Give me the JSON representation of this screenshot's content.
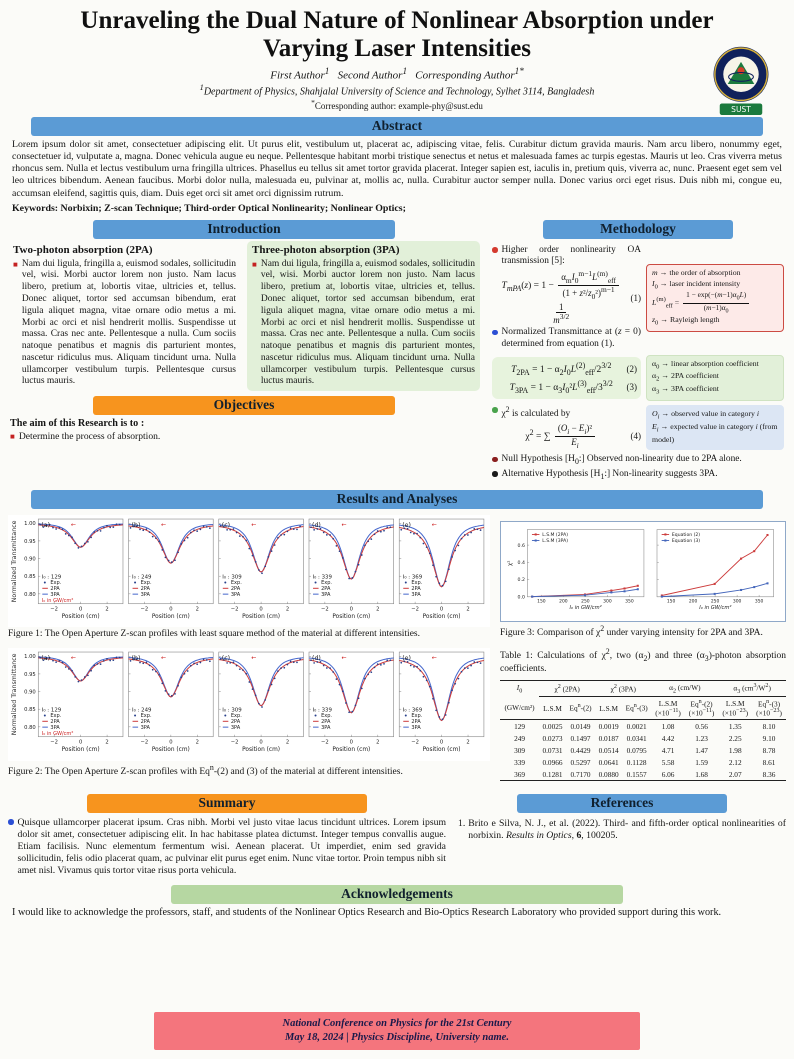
{
  "page": {
    "title": "Unraveling the Dual Nature of Nonlinear Absorption under Varying Laser Intensities",
    "authors_html": "First Author<sup>1</sup> &nbsp;&nbsp;Second Author<sup>1</sup> &nbsp;&nbsp;Corresponding Author<sup>1*</sup>",
    "affiliation_html": "<sup>1</sup>Department of Physics, Shahjalal University of Science and Technology, Sylhet 3114, Bangladesh",
    "corresponding_html": "<sup>*</sup>Corresponding author: example-phy@sust.edu",
    "logo_label": "SUST"
  },
  "colors": {
    "section_header_blue": "#5b9bd5",
    "section_header_orange": "#f7941e",
    "acknowledgement_green": "#b6d7a2",
    "footer_pink": "#f4757d",
    "green_panel": "#e2f0d9"
  },
  "abstract": {
    "heading": "Abstract",
    "text": "Lorem ipsum dolor sit amet, consectetuer adipiscing elit. Ut purus elit, vestibulum ut, placerat ac, adipiscing vitae, felis. Curabitur dictum gravida mauris. Nam arcu libero, nonummy eget, consectetuer id, vulputate a, magna. Donec vehicula augue eu neque. Pellentesque habitant morbi tristique senectus et netus et malesuada fames ac turpis egestas. Mauris ut leo. Cras viverra metus rhoncus sem. Nulla et lectus vestibulum urna fringilla ultrices. Phasellus eu tellus sit amet tortor gravida placerat. Integer sapien est, iaculis in, pretium quis, viverra ac, nunc. Praesent eget sem vel leo ultrices bibendum. Aenean faucibus. Morbi dolor nulla, malesuada eu, pulvinar at, mollis ac, nulla. Curabitur auctor semper nulla. Donec varius orci eget risus. Duis nibh mi, congue eu, accumsan eleifend, sagittis quis, diam. Duis eget orci sit amet orci dignissim rutrum.",
    "keywords": "Keywords: Norbixin; Z-scan Technique; Third-order Optical Nonlinearity; Nonlinear Optics;"
  },
  "introduction": {
    "heading": "Introduction",
    "col_2pa": {
      "title": "Two-photon absorption (2PA)",
      "text": "Nam dui ligula, fringilla a, euismod sodales, sollicitudin vel, wisi. Morbi auctor lorem non justo. Nam lacus libero, pretium at, lobortis vitae, ultricies et, tellus. Donec aliquet, tortor sed accumsan bibendum, erat ligula aliquet magna, vitae ornare odio metus a mi. Morbi ac orci et nisl hendrerit mollis. Suspendisse ut massa. Cras nec ante. Pellentesque a nulla. Cum sociis natoque penatibus et magnis dis parturient montes, nascetur ridiculus mus. Aliquam tincidunt urna. Nulla ullamcorper vestibulum turpis. Pellentesque cursus luctus mauris."
    },
    "col_3pa": {
      "title": "Three-photon absorption (3PA)",
      "text": "Nam dui ligula, fringilla a, euismod sodales, sollicitudin vel, wisi. Morbi auctor lorem non justo. Nam lacus libero, pretium at, lobortis vitae, ultricies et, tellus. Donec aliquet, tortor sed accumsan bibendum, erat ligula aliquet magna, vitae ornare odio metus a mi. Morbi ac orci et nisl hendrerit mollis. Suspendisse ut massa. Cras nec ante. Pellentesque a nulla. Cum sociis natoque penatibus et magnis dis parturient montes, nascetur ridiculus mus. Aliquam tincidunt urna. Nulla ullamcorper vestibulum turpis. Pellentesque cursus luctus mauris."
    }
  },
  "objectives": {
    "heading": "Objectives",
    "lead": "The aim of this Research is to :",
    "items": [
      "Determine the process of absorption."
    ]
  },
  "methodology": {
    "heading": "Methodology",
    "bullets": [
      {
        "html": "Higher order nonlinearity OA transmission [5]:"
      },
      {
        "html": "Normalized Transmittance at (<i>z</i> = 0) determined from equation (1)."
      },
      {
        "html": "χ<sup>2</sup> is calculated by"
      },
      {
        "html": "Null Hypothesis [H<sub>0</sub>:] Observed non-linearity due to 2PA alone."
      },
      {
        "html": "Alternative Hypothesis [H<sub>1</sub>:] Non-linearity suggests 3PA."
      }
    ],
    "equations": [
      {
        "num": "(1)",
        "html": "<i>T<sub>mPA</sub></i>(<i>z</i>) = 1 − <span class=\"frac\"><span class=\"num\">α<sub>m</sub><i>I</i><sub>0</sub><sup>m−1</sup><i>L</i><sup>(m)</sup><sub>eff</sub></span><span class=\"den\">(1 + <i>z</i>²/<i>z</i><sub>0</sub>²)<sup>m−1</sup></span></span><span class=\"frac\"><span class=\"num\">1</span><span class=\"den\"><i>m</i><sup>3/2</sup></span></span>"
      },
      {
        "num": "(2)",
        "html": "<i>T</i><sub>2PA</sub> = 1 − α<sub>2</sub><i>I</i><sub>0</sub><i>L</i><sup>(2)</sup><sub>eff</sub>/2<sup>3/2</sup>"
      },
      {
        "num": "(3)",
        "html": "<i>T</i><sub>3PA</sub> = 1 − α<sub>3</sub><i>I</i><sub>0</sub>²<i>L</i><sup>(3)</sup><sub>eff</sub>/3<sup>3/2</sup>"
      },
      {
        "num": "(4)",
        "html": "χ<sup>2</sup> = ∑ <span class=\"frac\"><span class=\"num\">(<i>O<sub>i</sub></i> − <i>E<sub>i</sub></i>)²</span><span class=\"den\"><i>E<sub>i</sub></i></span></span>"
      }
    ],
    "boxes": [
      {
        "style": "pink",
        "lines": [
          "<i>m</i> → the order of absorption",
          "<i>I</i><sub>0</sub> → laser incident intensity",
          "<i>L</i><sup>(m)</sup><sub>eff</sub> = <span class=\"frac\"><span class=\"num\">1 − exp(−(<i>m</i>−1)α<sub>0</sub><i>L</i>)</span><span class=\"den\">(<i>m</i>−1)α<sub>0</sub></span></span>",
          "<i>z</i><sub>0</sub> → Rayleigh length"
        ]
      },
      {
        "style": "green",
        "lines": [
          "α<sub>0</sub> → linear absorption coefficient",
          "α<sub>2</sub> → 2PA coefficient",
          "α<sub>3</sub> → 3PA coefficient"
        ]
      },
      {
        "style": "blue",
        "lines": [
          "<i>O<sub>i</sub></i> → observed value in category <i>i</i>",
          "<i>E<sub>i</sub></i> → expected value in category <i>i</i> (from model)"
        ]
      }
    ]
  },
  "results": {
    "heading": "Results and Analyses"
  },
  "chart_data": [
    {
      "name": "figure1",
      "type": "line",
      "ylabel": "Normalized Transmittance",
      "xlabel": "Position (cm)",
      "ylim": [
        0.78,
        1.01
      ],
      "yticks": [
        1.0,
        0.95,
        0.9,
        0.85,
        0.8
      ],
      "xticks": [
        -2,
        0,
        2
      ],
      "legend": [
        "Exp.",
        "2PA",
        "3PA"
      ],
      "i0_label": "I₀",
      "annotation": "I₀ in GW/cm²",
      "caption_html": "Figure 1: The Open Aperture Z-scan profiles with least square method of the material at different intensities.",
      "subplots": [
        {
          "tag": "(a)",
          "intensity": 129,
          "min_transmittance": 0.932
        },
        {
          "tag": "(b)",
          "intensity": 249,
          "min_transmittance": 0.887
        },
        {
          "tag": "(c)",
          "intensity": 309,
          "min_transmittance": 0.862
        },
        {
          "tag": "(d)",
          "intensity": 339,
          "min_transmittance": 0.842
        },
        {
          "tag": "(e)",
          "intensity": 369,
          "min_transmittance": 0.82
        }
      ]
    },
    {
      "name": "figure2",
      "type": "line",
      "ylabel": "Normalized Transmittance",
      "xlabel": "Position (cm)",
      "ylim": [
        0.78,
        1.01
      ],
      "yticks": [
        1.0,
        0.95,
        0.9,
        0.85,
        0.8
      ],
      "xticks": [
        -2,
        0,
        2
      ],
      "legend": [
        "Exp.",
        "2PA",
        "3PA"
      ],
      "i0_label": "I₀",
      "annotation": "I₀ in GW/cm²",
      "caption_html": "Figure 2: The Open Aperture Z-scan profiles with Eq<sup>n</sup>-(2) and (3) of the material at different intensities.",
      "subplots": [
        {
          "tag": "(a)",
          "intensity": 129,
          "min_transmittance": 0.93
        },
        {
          "tag": "(b)",
          "intensity": 249,
          "min_transmittance": 0.885
        },
        {
          "tag": "(c)",
          "intensity": 309,
          "min_transmittance": 0.86
        },
        {
          "tag": "(d)",
          "intensity": 339,
          "min_transmittance": 0.84
        },
        {
          "tag": "(e)",
          "intensity": 369,
          "min_transmittance": 0.818
        }
      ]
    },
    {
      "name": "figure3",
      "type": "line",
      "ylabel": "χ²",
      "xlabel": "I₀ in GW/cm²",
      "x": [
        129,
        249,
        309,
        339,
        369
      ],
      "xticks": [
        150,
        200,
        250,
        300,
        350
      ],
      "yticks": [
        0.0,
        0.2,
        0.4,
        0.6
      ],
      "left": {
        "legend": [
          "L.S.M (2PA)",
          "L.S.M (3PA)"
        ],
        "series": [
          [
            0.0025,
            0.0273,
            0.0731,
            0.0966,
            0.1281
          ],
          [
            0.0019,
            0.0187,
            0.0514,
            0.0641,
            0.088
          ]
        ]
      },
      "right": {
        "legend": [
          "Equation (2)",
          "Equation (3)"
        ],
        "series": [
          [
            0.0149,
            0.1497,
            0.4429,
            0.5297,
            0.717
          ],
          [
            0.0021,
            0.0341,
            0.0795,
            0.1128,
            0.1557
          ]
        ]
      },
      "caption_html": "Figure 3: Comparison of χ<sup>2</sup> under varying intensity for 2PA and 3PA."
    }
  ],
  "table": {
    "caption_html": "Table 1: Calculations of χ<sup>2</sup>, two (α<sub>2</sub>) and three (α<sub>3</sub>)-photon absorption coefficients.",
    "first_header_html": "<i>I</i><sub>0</sub>",
    "groups": [
      "χ<sup>2</sup> (2PA)",
      "χ<sup>2</sup> (3PA)",
      "α<sub>2</sub> (cm/W)",
      "α<sub>3</sub> (cm<sup>3</sup>/W<sup>2</sup>)"
    ],
    "sub_headers": [
      "(GW/cm²)",
      "L.S.M",
      "Eq<sup>n</sup>-(2)",
      "L.S.M",
      "Eq<sup>n</sup>-(3)",
      "L.S.M<br>(×10<sup>−11</sup>)",
      "Eq<sup>n</sup>-(2)<br>(×10<sup>−11</sup>)",
      "L.S.M<br>(×10<sup>−23</sup>)",
      "Eq<sup>n</sup>-(3)<br>(×10<sup>−23</sup>)"
    ],
    "rows": [
      [
        "129",
        "0.0025",
        "0.0149",
        "0.0019",
        "0.0021",
        "1.08",
        "0.56",
        "1.35",
        "8.10"
      ],
      [
        "249",
        "0.0273",
        "0.1497",
        "0.0187",
        "0.0341",
        "4.42",
        "1.23",
        "2.25",
        "9.10"
      ],
      [
        "309",
        "0.0731",
        "0.4429",
        "0.0514",
        "0.0795",
        "4.71",
        "1.47",
        "1.98",
        "8.78"
      ],
      [
        "339",
        "0.0966",
        "0.5297",
        "0.0641",
        "0.1128",
        "5.58",
        "1.59",
        "2.12",
        "8.61"
      ],
      [
        "369",
        "0.1281",
        "0.7170",
        "0.0880",
        "0.1557",
        "6.06",
        "1.68",
        "2.07",
        "8.36"
      ]
    ]
  },
  "summary": {
    "heading": "Summary",
    "text": "Quisque ullamcorper placerat ipsum. Cras nibh. Morbi vel justo vitae lacus tincidunt ultrices. Lorem ipsum dolor sit amet, consectetuer adipiscing elit. In hac habitasse platea dictumst. Integer tempus convallis augue. Etiam facilisis. Nunc elementum fermentum wisi. Aenean placerat. Ut imperdiet, enim sed gravida sollicitudin, felis odio placerat quam, ac pulvinar elit purus eget enim. Nunc vitae tortor. Proin tempus nibh sit amet nisl. Vivamus quis tortor vitae risus porta vehicula."
  },
  "references": {
    "heading": "References",
    "items": [
      {
        "marker": "1.",
        "html": "Brito e Silva, N. J., et al. (2022). Third- and fifth-order optical nonlinearities of norbixin. <i>Results in Optics</i>, <b>6</b>, 100205."
      }
    ]
  },
  "acknowledgements": {
    "heading": "Acknowledgements",
    "text": "I would like to acknowledge the professors, staff, and students of the Nonlinear Optics Research and Bio-Optics Research Laboratory who provided support during this work."
  },
  "footer": {
    "line1": "National Conference on Physics for the 21st Century",
    "line2": "May 18, 2024  |  Physics Discipline, University name."
  }
}
